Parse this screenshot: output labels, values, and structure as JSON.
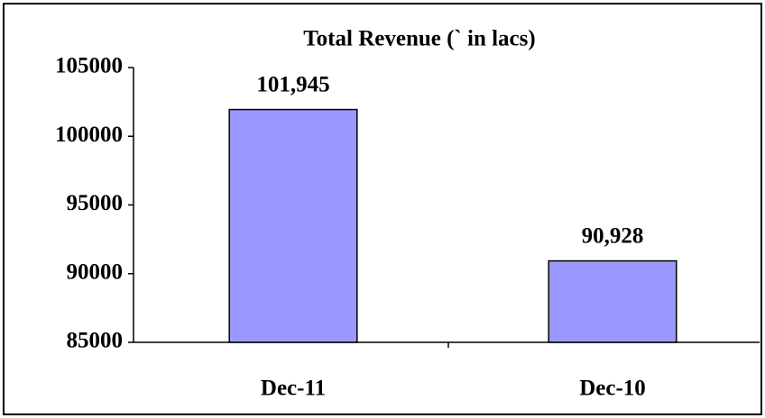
{
  "chart_data": {
    "type": "bar",
    "title": "Total Revenue (` in lacs)",
    "categories": [
      "Dec-11",
      "Dec-10"
    ],
    "values": [
      101945,
      90928
    ],
    "value_labels": [
      "101,945",
      "90,928"
    ],
    "color": "#9999ff",
    "ylim": [
      85000,
      105000
    ],
    "yticks": [
      85000,
      90000,
      95000,
      100000,
      105000
    ],
    "grid": false
  }
}
